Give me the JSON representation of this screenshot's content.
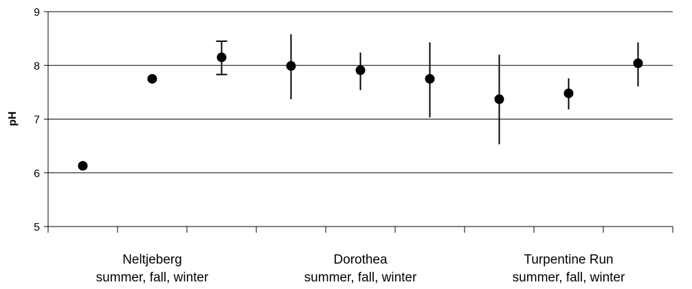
{
  "chart_data": {
    "type": "scatter",
    "title": "",
    "xlabel": "",
    "ylabel": "pH",
    "ylim": [
      5,
      9
    ],
    "yticks": [
      5,
      6,
      7,
      8,
      9
    ],
    "grid": "horizontal",
    "categories": [
      {
        "name": "Neltjeberg",
        "sub": "summer, fall, winter"
      },
      {
        "name": "Dorothea",
        "sub": "summer, fall, winter"
      },
      {
        "name": "Turpentine Run",
        "sub": "summer, fall, winter"
      }
    ],
    "points": [
      {
        "site": "Neltjeberg",
        "season": "summer",
        "y": 6.13,
        "err_low": 6.05,
        "err_high": 6.22,
        "caps": false
      },
      {
        "site": "Neltjeberg",
        "season": "fall",
        "y": 7.75,
        "err_low": 7.75,
        "err_high": 7.75,
        "caps": false
      },
      {
        "site": "Neltjeberg",
        "season": "winter",
        "y": 8.15,
        "err_low": 7.83,
        "err_high": 8.45,
        "caps": true
      },
      {
        "site": "Dorothea",
        "season": "summer",
        "y": 7.99,
        "err_low": 7.37,
        "err_high": 8.58,
        "caps": false
      },
      {
        "site": "Dorothea",
        "season": "fall",
        "y": 7.91,
        "err_low": 7.54,
        "err_high": 8.24,
        "caps": false
      },
      {
        "site": "Dorothea",
        "season": "winter",
        "y": 7.75,
        "err_low": 7.03,
        "err_high": 8.43,
        "caps": false
      },
      {
        "site": "Turpentine Run",
        "season": "summer",
        "y": 7.37,
        "err_low": 6.53,
        "err_high": 8.2,
        "caps": false
      },
      {
        "site": "Turpentine Run",
        "season": "fall",
        "y": 7.48,
        "err_low": 7.18,
        "err_high": 7.76,
        "caps": false
      },
      {
        "site": "Turpentine Run",
        "season": "winter",
        "y": 8.04,
        "err_low": 7.61,
        "err_high": 8.43,
        "caps": false
      }
    ],
    "colors": {
      "marker": "#000000",
      "grid": "#000000",
      "axis": "#000000"
    }
  }
}
